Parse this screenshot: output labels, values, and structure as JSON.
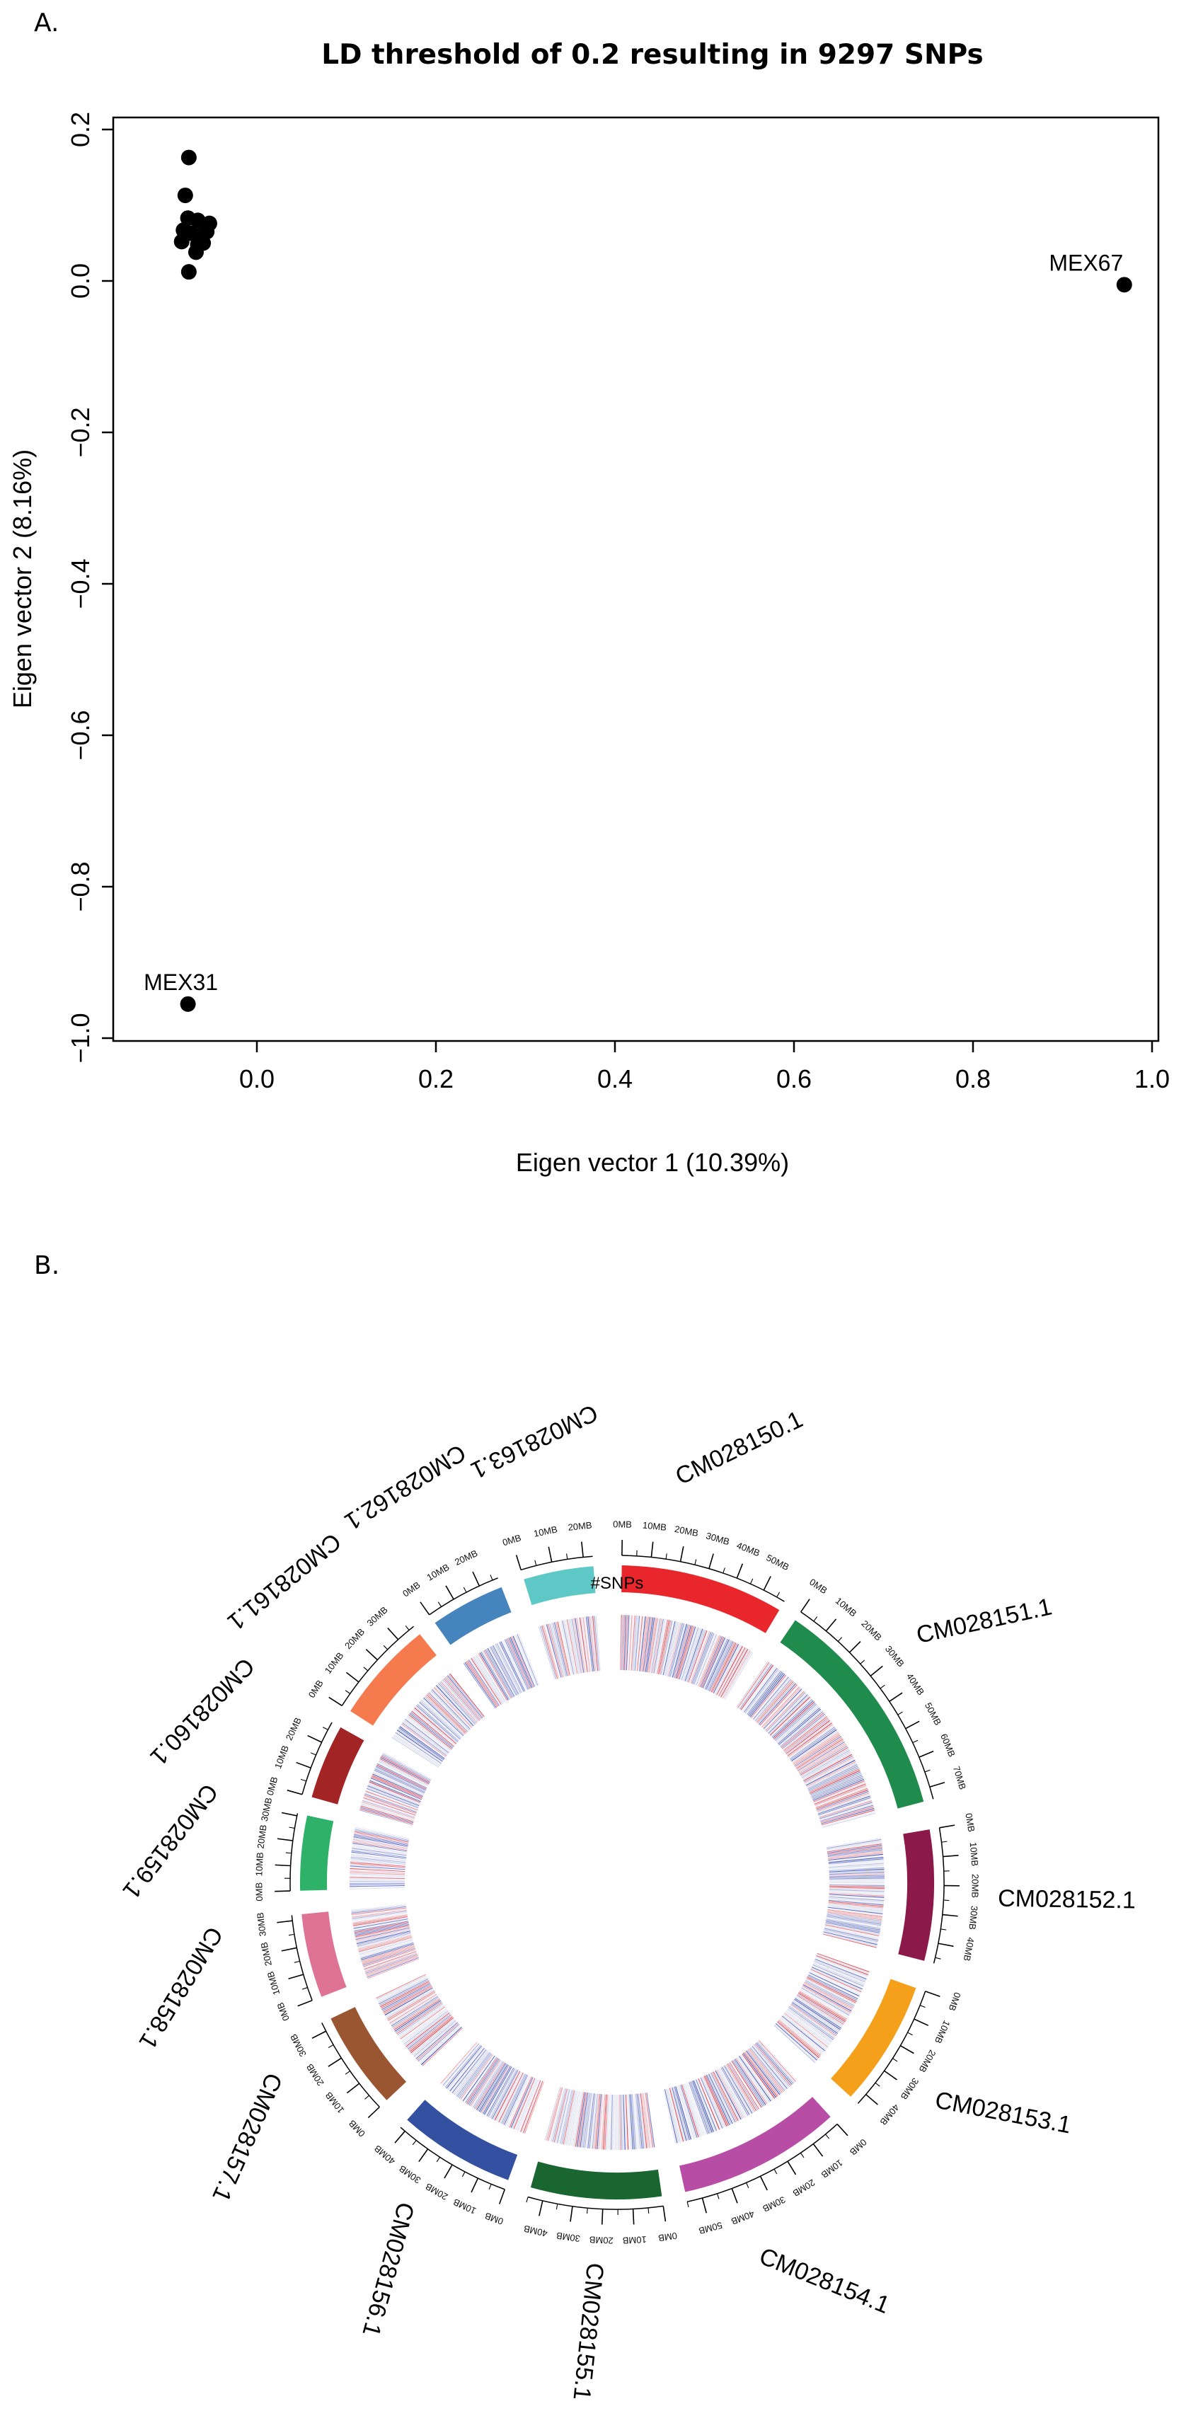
{
  "panel_a_label": "A.",
  "panel_b_label": "B.",
  "chart_data": [
    {
      "type": "scatter",
      "title": "LD threshold of 0.2 resulting in 9297 SNPs",
      "xlabel": "Eigen vector 1 (10.39%)",
      "ylabel": "Eigen vector 2 (8.16%)",
      "xlim": [
        -0.12,
        1.02
      ],
      "ylim": [
        -1.0,
        0.2
      ],
      "xticks": [
        0.0,
        0.2,
        0.4,
        0.6,
        0.8,
        1.0
      ],
      "xtick_labels": [
        "0.0",
        "0.2",
        "0.4",
        "0.6",
        "0.8",
        "1.0"
      ],
      "yticks": [
        0.2,
        0.0,
        -0.2,
        -0.4,
        -0.6,
        -0.8,
        -1.0
      ],
      "ytick_labels": [
        "0.2",
        "0.0",
        "−0.2",
        "−0.4",
        "−0.6",
        "−0.8",
        "−1.0"
      ],
      "points": [
        {
          "x": -0.076,
          "y": 0.163,
          "label": ""
        },
        {
          "x": -0.08,
          "y": 0.113,
          "label": ""
        },
        {
          "x": -0.077,
          "y": 0.083,
          "label": ""
        },
        {
          "x": -0.066,
          "y": 0.08,
          "label": ""
        },
        {
          "x": -0.053,
          "y": 0.076,
          "label": ""
        },
        {
          "x": -0.082,
          "y": 0.067,
          "label": ""
        },
        {
          "x": -0.073,
          "y": 0.063,
          "label": ""
        },
        {
          "x": -0.063,
          "y": 0.06,
          "label": ""
        },
        {
          "x": -0.056,
          "y": 0.065,
          "label": ""
        },
        {
          "x": -0.084,
          "y": 0.052,
          "label": ""
        },
        {
          "x": -0.066,
          "y": 0.048,
          "label": ""
        },
        {
          "x": -0.06,
          "y": 0.05,
          "label": ""
        },
        {
          "x": -0.068,
          "y": 0.038,
          "label": ""
        },
        {
          "x": -0.076,
          "y": 0.012,
          "label": ""
        },
        {
          "x": 0.969,
          "y": -0.005,
          "label": "MEX67"
        },
        {
          "x": -0.077,
          "y": -0.955,
          "label": "MEX31"
        }
      ]
    },
    {
      "type": "circos",
      "track_label": "#SNPs",
      "chromosomes": [
        {
          "name": "CM028150.1",
          "length_mb": 58,
          "color": "#e8262b",
          "tick_labels": [
            "0MB",
            "10MB",
            "20MB",
            "30MB",
            "40MB",
            "50MB"
          ]
        },
        {
          "name": "CM028151.1",
          "length_mb": 74,
          "color": "#1f8b4c",
          "tick_labels": [
            "0MB",
            "10MB",
            "20MB",
            "30MB",
            "40MB",
            "50MB",
            "60MB",
            "70MB"
          ]
        },
        {
          "name": "CM028152.1",
          "length_mb": 47,
          "color": "#8b1a4a",
          "tick_labels": [
            "0MB",
            "10MB",
            "20MB",
            "30MB",
            "40MB"
          ]
        },
        {
          "name": "CM028153.1",
          "length_mb": 44,
          "color": "#f5a01a",
          "tick_labels": [
            "0MB",
            "10MB",
            "20MB",
            "30MB",
            "40MB"
          ]
        },
        {
          "name": "CM028154.1",
          "length_mb": 55,
          "color": "#b84da6",
          "tick_labels": [
            "0MB",
            "10MB",
            "20MB",
            "30MB",
            "40MB",
            "50MB"
          ]
        },
        {
          "name": "CM028155.1",
          "length_mb": 45,
          "color": "#1a6630",
          "tick_labels": [
            "0MB",
            "10MB",
            "20MB",
            "30MB",
            "40MB"
          ]
        },
        {
          "name": "CM028156.1",
          "length_mb": 42,
          "color": "#3450a0",
          "tick_labels": [
            "0MB",
            "10MB",
            "20MB",
            "30MB",
            "40MB"
          ]
        },
        {
          "name": "CM028157.1",
          "length_mb": 33,
          "color": "#9a5630",
          "tick_labels": [
            "0MB",
            "10MB",
            "20MB",
            "30MB"
          ]
        },
        {
          "name": "CM028158.1",
          "length_mb": 32,
          "color": "#de7396",
          "tick_labels": [
            "0MB",
            "10MB",
            "20MB",
            "30MB"
          ]
        },
        {
          "name": "CM028159.1",
          "length_mb": 31,
          "color": "#2eb26a",
          "tick_labels": [
            "0MB",
            "10MB",
            "20MB",
            "30MB"
          ]
        },
        {
          "name": "CM028160.1",
          "length_mb": 28,
          "color": "#a32424",
          "tick_labels": [
            "0MB",
            "10MB",
            "20MB"
          ]
        },
        {
          "name": "CM028161.1",
          "length_mb": 37,
          "color": "#f57b4e",
          "tick_labels": [
            "0MB",
            "10MB",
            "20MB",
            "30MB"
          ]
        },
        {
          "name": "CM028162.1",
          "length_mb": 27,
          "color": "#4684bd",
          "tick_labels": [
            "0MB",
            "10MB",
            "20MB"
          ]
        },
        {
          "name": "CM028163.1",
          "length_mb": 23,
          "color": "#5ec8c6",
          "tick_labels": [
            "0MB",
            "10MB",
            "20MB"
          ]
        }
      ],
      "snp_colors": {
        "high": "#e0303a",
        "low": "#3548b8",
        "mid": "#f4f4f4"
      }
    }
  ]
}
